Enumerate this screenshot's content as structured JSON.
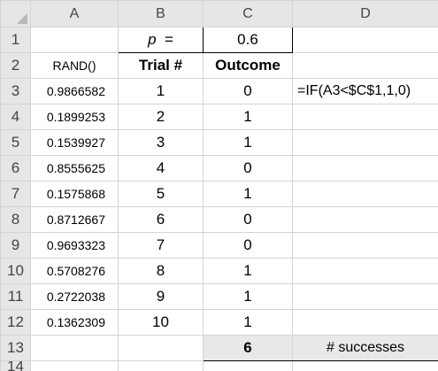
{
  "columns": [
    "A",
    "B",
    "C",
    "D"
  ],
  "row_numbers": [
    "1",
    "2",
    "3",
    "4",
    "5",
    "6",
    "7",
    "8",
    "9",
    "10",
    "11",
    "12",
    "13",
    "14"
  ],
  "row1": {
    "p_label": "p",
    "p_eq": "=",
    "p_value": "0.6"
  },
  "row2": {
    "rand_header": "RAND()",
    "trial_header": "Trial #",
    "outcome_header": "Outcome"
  },
  "data_rows": [
    {
      "rand": "0.9866582",
      "trial": "1",
      "outcome": "0",
      "formula": "=IF(A3<$C$1,1,0)"
    },
    {
      "rand": "0.1899253",
      "trial": "2",
      "outcome": "1",
      "formula": ""
    },
    {
      "rand": "0.1539927",
      "trial": "3",
      "outcome": "1",
      "formula": ""
    },
    {
      "rand": "0.8555625",
      "trial": "4",
      "outcome": "0",
      "formula": ""
    },
    {
      "rand": "0.1575868",
      "trial": "5",
      "outcome": "1",
      "formula": ""
    },
    {
      "rand": "0.8712667",
      "trial": "6",
      "outcome": "0",
      "formula": ""
    },
    {
      "rand": "0.9693323",
      "trial": "7",
      "outcome": "0",
      "formula": ""
    },
    {
      "rand": "0.5708276",
      "trial": "8",
      "outcome": "1",
      "formula": ""
    },
    {
      "rand": "0.2722038",
      "trial": "9",
      "outcome": "1",
      "formula": ""
    },
    {
      "rand": "0.1362309",
      "trial": "10",
      "outcome": "1",
      "formula": ""
    }
  ],
  "row13": {
    "sum": "6",
    "label": "# successes"
  },
  "colors": {
    "header_bg": "#e6e6e6",
    "gridline": "#d4d4d4",
    "shaded_cell": "#e8e8e8"
  }
}
